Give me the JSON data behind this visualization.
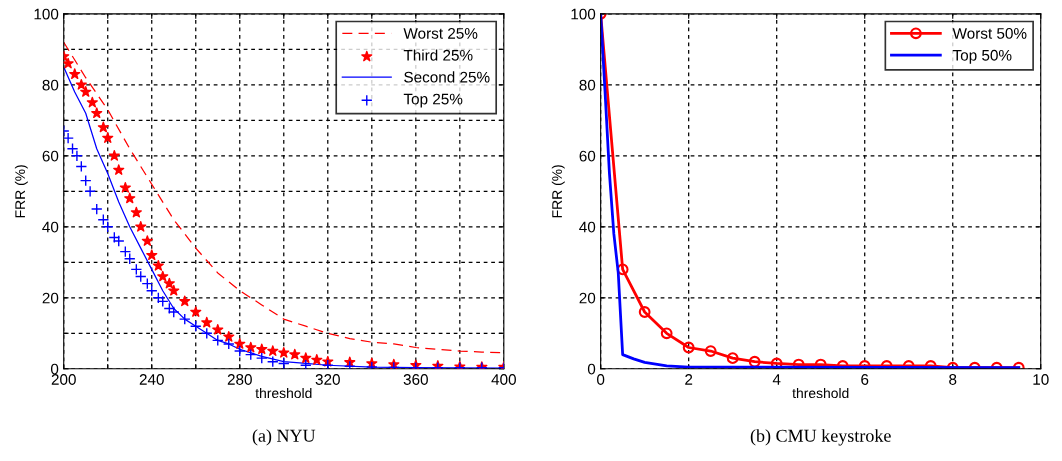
{
  "chart_data": [
    {
      "type": "line",
      "title": "(a) NYU",
      "xlabel": "threshold",
      "ylabel": "FRR (%)",
      "xlim": [
        200,
        400
      ],
      "ylim": [
        0,
        100
      ],
      "xticks": [
        200,
        {
          "value": 220,
          "label": null
        },
        240,
        {
          "value": 260,
          "label": null
        },
        280,
        {
          "value": 300,
          "label": null
        },
        320,
        {
          "value": 340,
          "label": null
        },
        360,
        {
          "value": 380,
          "label": null
        },
        400
      ],
      "yticks": [
        0,
        {
          "value": 10,
          "label": null
        },
        20,
        {
          "value": 30,
          "label": null
        },
        40,
        {
          "value": 50,
          "label": null
        },
        60,
        {
          "value": 70,
          "label": null
        },
        80,
        {
          "value": 90,
          "label": null
        },
        100
      ],
      "grid": true,
      "legend": "top right",
      "series": [
        {
          "name": "Worst 25%",
          "color": "#ff0000",
          "line_style": "dashed",
          "marker": "none",
          "x": [
            200,
            210,
            220,
            230,
            240,
            250,
            260,
            270,
            280,
            290,
            300,
            310,
            320,
            330,
            340,
            350,
            360,
            370,
            380,
            390,
            400
          ],
          "values": [
            92,
            82,
            73,
            62,
            52,
            42,
            34,
            27,
            22,
            18,
            14,
            12,
            10,
            8.5,
            7.5,
            7,
            6,
            5.5,
            5,
            4.7,
            4.5
          ]
        },
        {
          "name": "Third 25%",
          "type": "scatter",
          "color": "#ff0000",
          "marker": "star",
          "x": [
            200,
            202,
            205,
            208,
            210,
            213,
            215,
            218,
            220,
            223,
            225,
            228,
            230,
            233,
            235,
            238,
            240,
            243,
            245,
            248,
            250,
            255,
            260,
            265,
            270,
            275,
            280,
            285,
            290,
            295,
            300,
            305,
            310,
            315,
            320,
            330,
            340,
            350,
            360,
            370,
            380,
            390,
            400
          ],
          "values": [
            88,
            86,
            83,
            80,
            78,
            75,
            72,
            68,
            65,
            60,
            56,
            51,
            48,
            44,
            40,
            36,
            32,
            29,
            26,
            24,
            22,
            19,
            16,
            13,
            11,
            9,
            7,
            6,
            5.5,
            5,
            4.5,
            4,
            3,
            2.5,
            2,
            1.8,
            1.5,
            1.2,
            1,
            0.8,
            0.6,
            0.5,
            0.5
          ]
        },
        {
          "name": "Second 25%",
          "color": "#0000ff",
          "line_style": "solid",
          "marker": "none",
          "x": [
            200,
            205,
            210,
            215,
            220,
            225,
            230,
            235,
            240,
            245,
            250,
            255,
            260,
            265,
            270,
            275,
            280,
            290,
            300,
            310,
            320,
            340,
            360,
            400
          ],
          "values": [
            85,
            78,
            72,
            62,
            55,
            47,
            40,
            34,
            28,
            22,
            17,
            14,
            12,
            10,
            8,
            7,
            5.5,
            3.5,
            2,
            1.5,
            1,
            0.5,
            0.3,
            0.2
          ]
        },
        {
          "name": "Top 25%",
          "type": "scatter",
          "color": "#0000ff",
          "marker": "cross",
          "x": [
            200,
            202,
            204,
            206,
            208,
            210,
            212,
            215,
            218,
            220,
            223,
            225,
            228,
            230,
            233,
            235,
            238,
            240,
            243,
            245,
            248,
            250,
            255,
            260,
            265,
            270,
            275,
            280,
            285,
            290,
            295,
            300,
            310,
            320,
            330,
            340,
            350,
            360,
            370,
            380,
            390,
            400
          ],
          "values": [
            67,
            65,
            62,
            60,
            57,
            53,
            50,
            45,
            42,
            40,
            37,
            36,
            33,
            31,
            28,
            26,
            24,
            22,
            20,
            19,
            17,
            16,
            14,
            12,
            10,
            8,
            7,
            5,
            4,
            3,
            2,
            1.5,
            1,
            1,
            0.7,
            0.5,
            0.4,
            0.3,
            0.3,
            0.3,
            0.3,
            0.3
          ]
        }
      ]
    },
    {
      "type": "line",
      "title": "(b) CMU keystroke",
      "xlabel": "threshold",
      "ylabel": "FRR (%)",
      "xlim": [
        0,
        10
      ],
      "ylim": [
        0,
        100
      ],
      "xticks": [
        0,
        2,
        4,
        6,
        8,
        10
      ],
      "yticks": [
        0,
        20,
        40,
        60,
        80,
        100
      ],
      "grid": true,
      "legend": "top right",
      "series": [
        {
          "name": "Worst 50%",
          "color": "#ff0000",
          "line_style": "solid",
          "marker": "circle",
          "x": [
            0,
            0.5,
            1,
            1.5,
            2,
            2.5,
            3,
            3.5,
            4,
            4.5,
            5,
            5.5,
            6,
            6.5,
            7,
            7.5,
            8,
            8.5,
            9,
            9.5
          ],
          "values": [
            100,
            28,
            16,
            10,
            6,
            5,
            3,
            2,
            1.5,
            1.2,
            1.2,
            0.8,
            0.8,
            0.8,
            0.8,
            0.8,
            0.3,
            0.3,
            0.3,
            0.3
          ]
        },
        {
          "name": "Top 50%",
          "color": "#0000ff",
          "line_style": "solid",
          "marker": "none",
          "x": [
            0,
            0.1,
            0.2,
            0.3,
            0.4,
            0.5,
            0.75,
            1,
            1.5,
            2,
            9.5
          ],
          "values": [
            100,
            78,
            55,
            38,
            27,
            4,
            2.8,
            1.8,
            0.8,
            0.5,
            0.3
          ]
        }
      ]
    }
  ]
}
